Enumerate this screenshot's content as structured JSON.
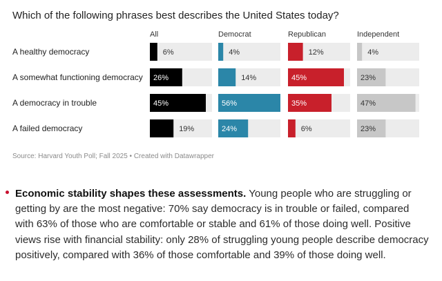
{
  "chart_data": {
    "type": "bar",
    "title": "Which of the following phrases best describes the United States today?",
    "categories": [
      "A healthy democracy",
      "A somewhat functioning democracy",
      "A democracy in trouble",
      "A failed democracy"
    ],
    "series": [
      {
        "name": "All",
        "values": [
          6,
          26,
          45,
          19
        ],
        "labels": [
          "6%",
          "26%",
          "45%",
          "19%"
        ],
        "color": "#000000"
      },
      {
        "name": "Democrat",
        "values": [
          4,
          14,
          56,
          24
        ],
        "labels": [
          "4%",
          "14%",
          "56%",
          "24%"
        ],
        "color": "#2b86a8"
      },
      {
        "name": "Republican",
        "values": [
          12,
          45,
          35,
          6
        ],
        "labels": [
          "12%",
          "45%",
          "35%",
          "6%"
        ],
        "color": "#c8202b"
      },
      {
        "name": "Independent",
        "values": [
          4,
          23,
          47,
          23
        ],
        "labels": [
          "4%",
          "23%",
          "47%",
          "23%"
        ],
        "color": "#c7c7c7"
      }
    ],
    "xlim": [
      0,
      100
    ],
    "source": "Source: Harvard Youth Poll; Fall 2025 • Created with Datawrapper",
    "colors": {
      "track": "#ececec",
      "label_dark": "#333333",
      "label_light": "#ffffff"
    }
  },
  "body": {
    "bullet_heading": "Economic stability shapes these assessments.",
    "bullet_text": " Young people who are struggling or getting by are the most negative: 70% say democracy is in trouble or failed, compared with 63% of those who are comfortable or stable and 61% of those doing well. Positive views rise with financial stability: only 28% of struggling young people describe democracy positively, compared with 36% of those comfortable and 39% of those doing well."
  }
}
